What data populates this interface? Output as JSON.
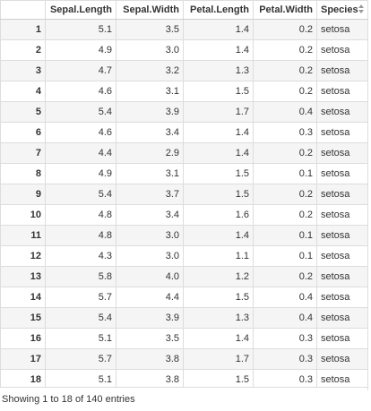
{
  "table": {
    "columns": [
      "",
      "Sepal.Length",
      "Sepal.Width",
      "Petal.Length",
      "Petal.Width",
      "Species"
    ],
    "rows": [
      [
        "1",
        "5.1",
        "3.5",
        "1.4",
        "0.2",
        "setosa"
      ],
      [
        "2",
        "4.9",
        "3.0",
        "1.4",
        "0.2",
        "setosa"
      ],
      [
        "3",
        "4.7",
        "3.2",
        "1.3",
        "0.2",
        "setosa"
      ],
      [
        "4",
        "4.6",
        "3.1",
        "1.5",
        "0.2",
        "setosa"
      ],
      [
        "5",
        "5.4",
        "3.9",
        "1.7",
        "0.4",
        "setosa"
      ],
      [
        "6",
        "4.6",
        "3.4",
        "1.4",
        "0.3",
        "setosa"
      ],
      [
        "7",
        "4.4",
        "2.9",
        "1.4",
        "0.2",
        "setosa"
      ],
      [
        "8",
        "4.9",
        "3.1",
        "1.5",
        "0.1",
        "setosa"
      ],
      [
        "9",
        "5.4",
        "3.7",
        "1.5",
        "0.2",
        "setosa"
      ],
      [
        "10",
        "4.8",
        "3.4",
        "1.6",
        "0.2",
        "setosa"
      ],
      [
        "11",
        "4.8",
        "3.0",
        "1.4",
        "0.1",
        "setosa"
      ],
      [
        "12",
        "4.3",
        "3.0",
        "1.1",
        "0.1",
        "setosa"
      ],
      [
        "13",
        "5.8",
        "4.0",
        "1.2",
        "0.2",
        "setosa"
      ],
      [
        "14",
        "5.7",
        "4.4",
        "1.5",
        "0.4",
        "setosa"
      ],
      [
        "15",
        "5.4",
        "3.9",
        "1.3",
        "0.4",
        "setosa"
      ],
      [
        "16",
        "5.1",
        "3.5",
        "1.4",
        "0.3",
        "setosa"
      ],
      [
        "17",
        "5.7",
        "3.8",
        "1.7",
        "0.3",
        "setosa"
      ],
      [
        "18",
        "5.1",
        "3.8",
        "1.5",
        "0.3",
        "setosa"
      ]
    ]
  },
  "footer": {
    "info": "Showing 1 to 18 of 140 entries"
  },
  "icons": {
    "species_sort": "sort-icon"
  }
}
